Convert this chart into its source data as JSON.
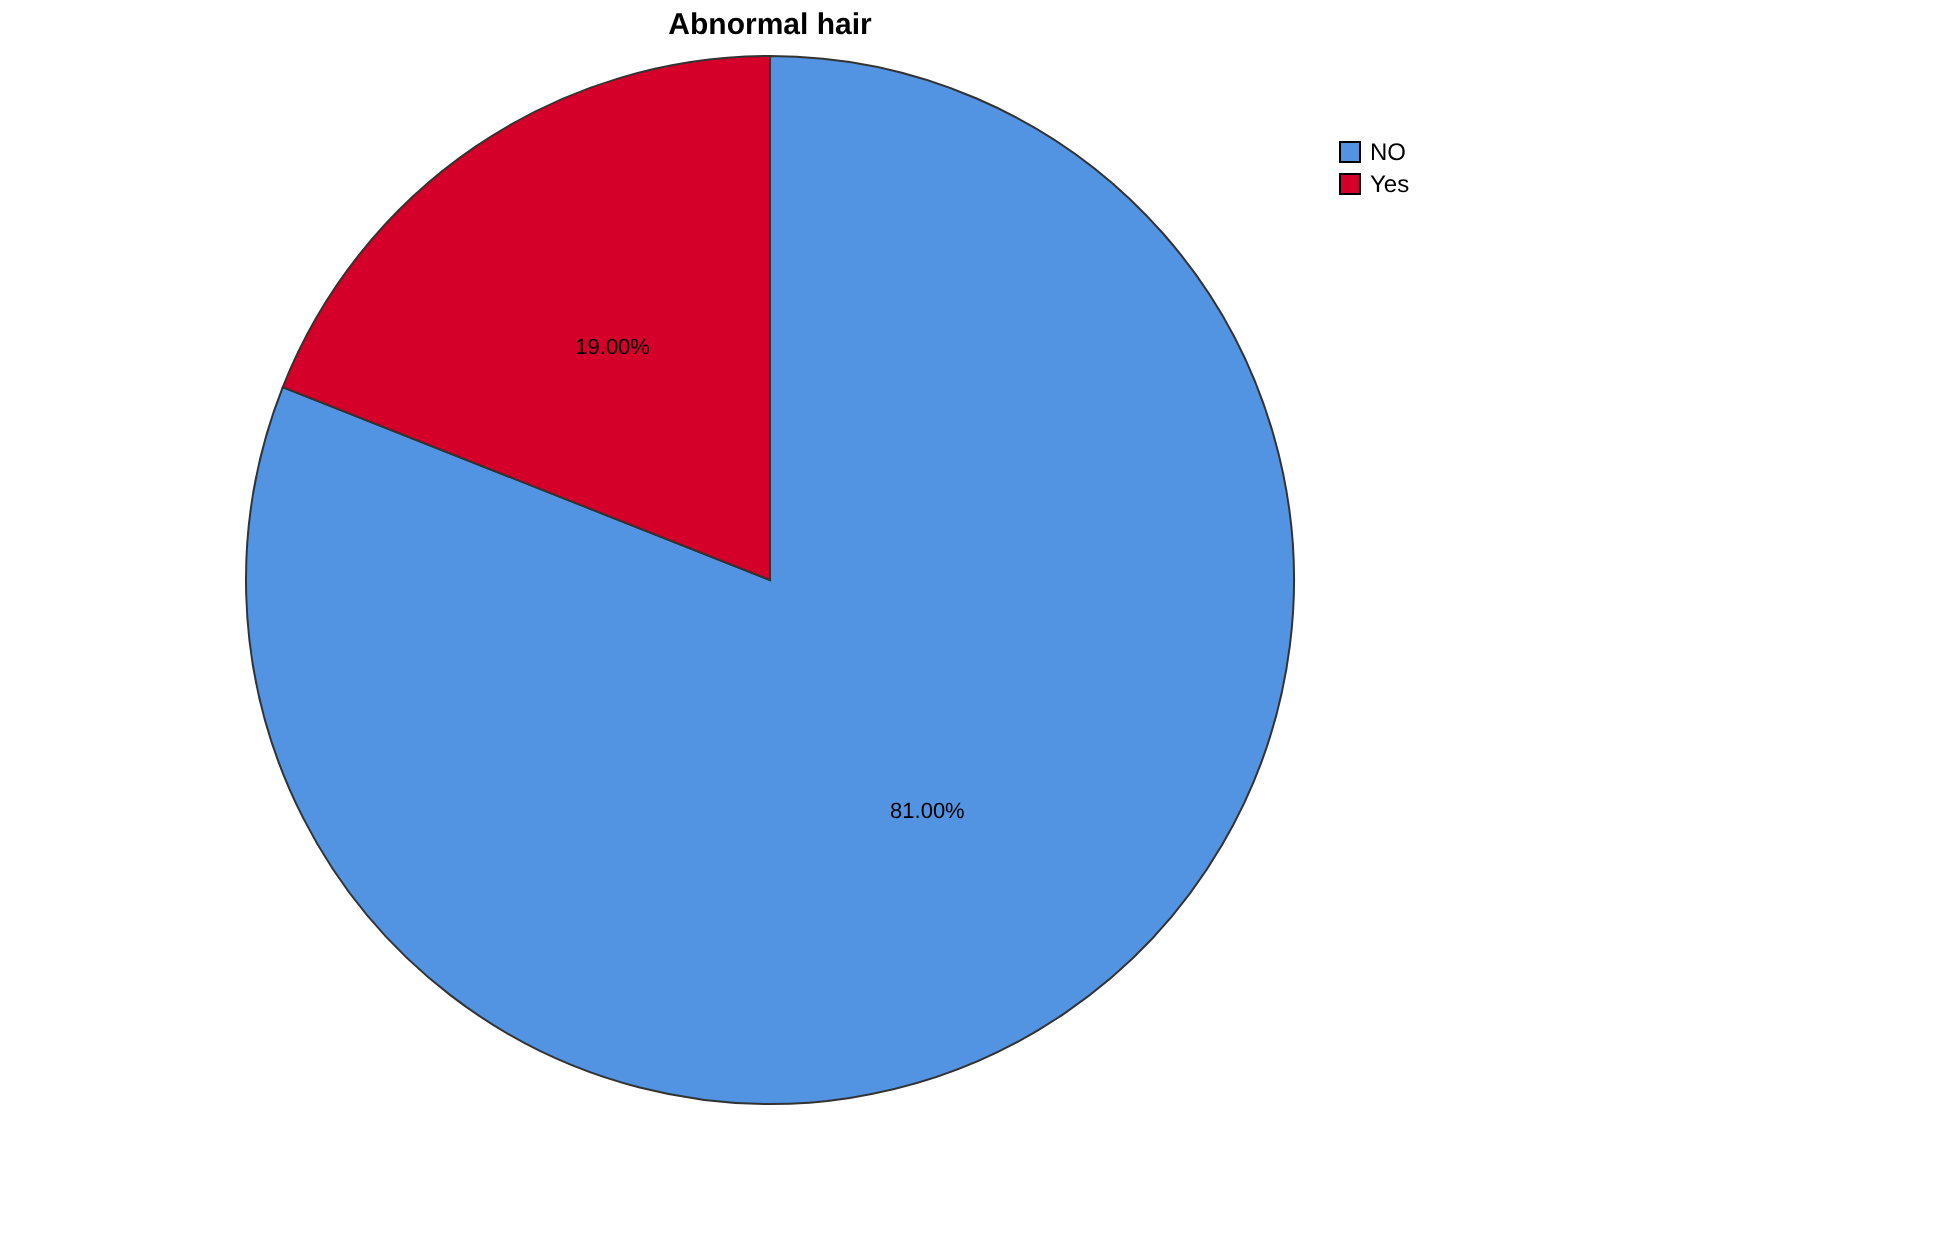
{
  "chart_data": {
    "type": "pie",
    "title": "Abnormal hair",
    "categories": [
      "NO",
      "Yes"
    ],
    "values": [
      81,
      19
    ],
    "colors": [
      "#5294e2",
      "#d4002a"
    ],
    "value_labels": [
      "81.00%",
      "19.00%"
    ],
    "legend": "top right"
  }
}
